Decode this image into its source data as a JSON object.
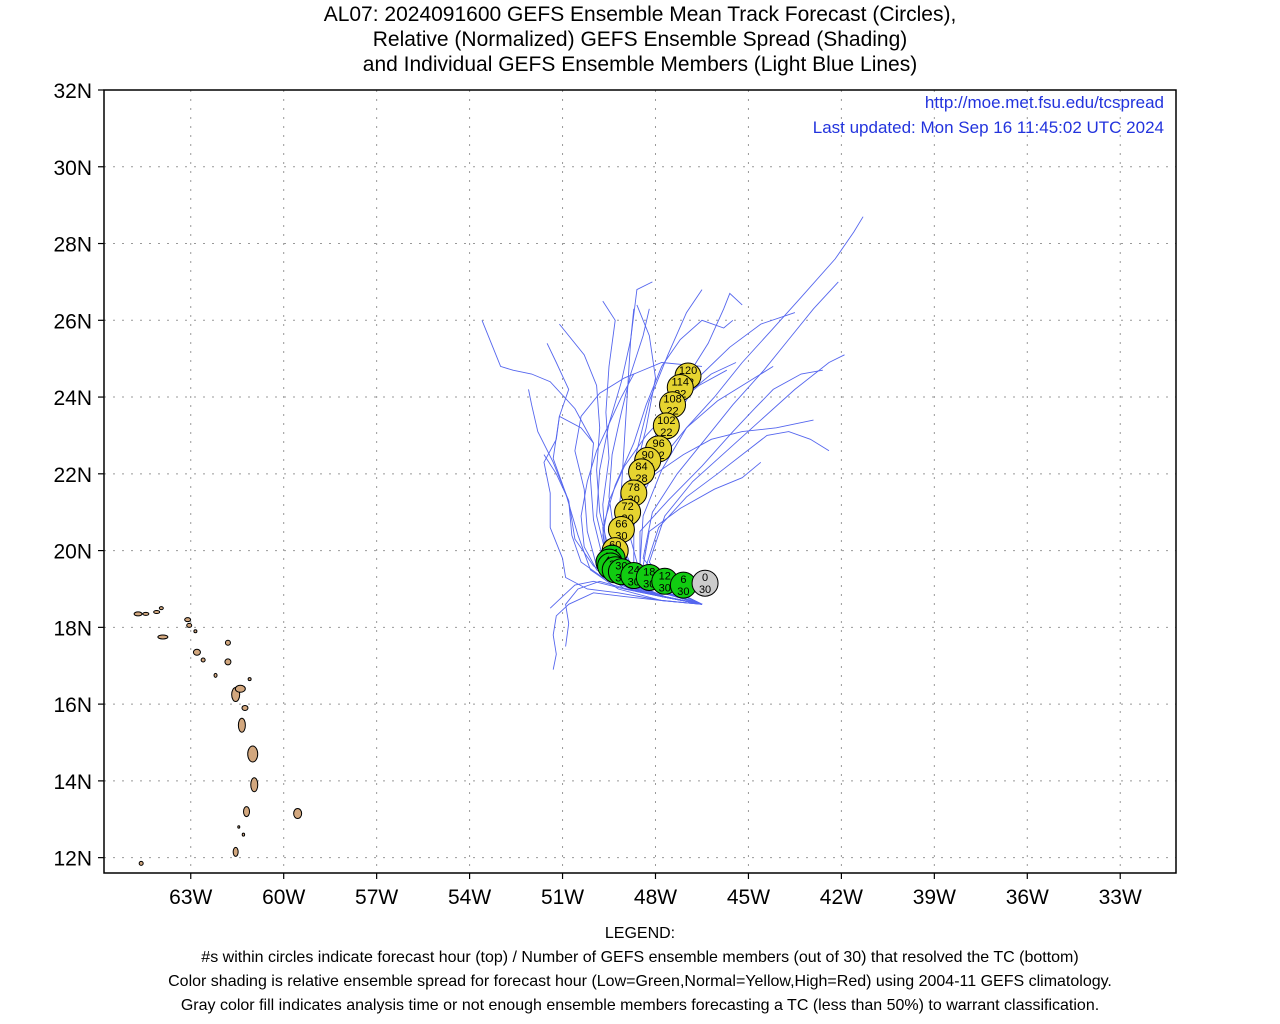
{
  "title": {
    "line1": "AL07: 2024091600 GEFS Ensemble Mean Track Forecast (Circles),",
    "line2": "Relative (Normalized) GEFS Ensemble Spread (Shading)",
    "line3": "and Individual GEFS Ensemble Members (Light Blue Lines)"
  },
  "header": {
    "url": "http://moe.met.fsu.edu/tcspread",
    "updated": "Last updated: Mon Sep 16 11:45:02 UTC 2024"
  },
  "map_extent": {
    "lon": [
      -65.8,
      -31.2
    ],
    "lat": [
      11.6,
      32.0
    ]
  },
  "lat_ticks": [
    {
      "value": 32,
      "label": "32N"
    },
    {
      "value": 30,
      "label": "30N"
    },
    {
      "value": 28,
      "label": "28N"
    },
    {
      "value": 26,
      "label": "26N"
    },
    {
      "value": 24,
      "label": "24N"
    },
    {
      "value": 22,
      "label": "22N"
    },
    {
      "value": 20,
      "label": "20N"
    },
    {
      "value": 18,
      "label": "18N"
    },
    {
      "value": 16,
      "label": "16N"
    },
    {
      "value": 14,
      "label": "14N"
    },
    {
      "value": 12,
      "label": "12N"
    }
  ],
  "lon_ticks": [
    {
      "value": -63,
      "label": "63W"
    },
    {
      "value": -60,
      "label": "60W"
    },
    {
      "value": -57,
      "label": "57W"
    },
    {
      "value": -54,
      "label": "54W"
    },
    {
      "value": -51,
      "label": "51W"
    },
    {
      "value": -48,
      "label": "48W"
    },
    {
      "value": -45,
      "label": "45W"
    },
    {
      "value": -42,
      "label": "42W"
    },
    {
      "value": -39,
      "label": "39W"
    },
    {
      "value": -36,
      "label": "36W"
    },
    {
      "value": -33,
      "label": "33W"
    }
  ],
  "colors": {
    "member_track": "#5566ee",
    "low_spread": "#11cc11",
    "normal_spread": "#e6d430",
    "analysis_gray": "#cccccc",
    "land": "#d2a77e",
    "grid": "#999999",
    "link_text": "#2233dd"
  },
  "mean_track": [
    {
      "hour": "0",
      "members": "30",
      "lon": -46.4,
      "lat": 19.15,
      "spread": "gray"
    },
    {
      "hour": "6",
      "members": "30",
      "lon": -47.1,
      "lat": 19.1,
      "spread": "low"
    },
    {
      "hour": "12",
      "members": "30",
      "lon": -47.7,
      "lat": 19.2,
      "spread": "low"
    },
    {
      "hour": "18",
      "members": "30",
      "lon": -48.2,
      "lat": 19.3,
      "spread": "low"
    },
    {
      "hour": "24",
      "members": "30",
      "lon": -48.7,
      "lat": 19.35,
      "spread": "low"
    },
    {
      "hour": "30",
      "members": "30",
      "lon": -49.1,
      "lat": 19.45,
      "spread": "low"
    },
    {
      "hour": "36",
      "members": "30",
      "lon": -49.3,
      "lat": 19.5,
      "spread": "low"
    },
    {
      "hour": "42",
      "members": "30",
      "lon": -49.45,
      "lat": 19.6,
      "spread": "low"
    },
    {
      "hour": "48",
      "members": "30",
      "lon": -49.5,
      "lat": 19.7,
      "spread": "low"
    },
    {
      "hour": "54",
      "members": "30",
      "lon": -49.4,
      "lat": 19.8,
      "spread": "low"
    },
    {
      "hour": "60",
      "members": "30",
      "lon": -49.3,
      "lat": 20.0,
      "spread": "normal"
    },
    {
      "hour": "66",
      "members": "30",
      "lon": -49.1,
      "lat": 20.55,
      "spread": "normal"
    },
    {
      "hour": "72",
      "members": "30",
      "lon": -48.9,
      "lat": 21.0,
      "spread": "normal"
    },
    {
      "hour": "78",
      "members": "30",
      "lon": -48.7,
      "lat": 21.5,
      "spread": "normal"
    },
    {
      "hour": "84",
      "members": "28",
      "lon": -48.45,
      "lat": 22.05,
      "spread": "normal"
    },
    {
      "hour": "90",
      "members": "24",
      "lon": -48.25,
      "lat": 22.35,
      "spread": "normal"
    },
    {
      "hour": "96",
      "members": "22",
      "lon": -47.9,
      "lat": 22.65,
      "spread": "normal"
    },
    {
      "hour": "102",
      "members": "22",
      "lon": -47.65,
      "lat": 23.25,
      "spread": "normal"
    },
    {
      "hour": "108",
      "members": "22",
      "lon": -47.45,
      "lat": 23.8,
      "spread": "normal"
    },
    {
      "hour": "114",
      "members": "22",
      "lon": -47.2,
      "lat": 24.25,
      "spread": "normal"
    },
    {
      "hour": "120",
      "members": "22",
      "lon": -46.95,
      "lat": 24.55,
      "spread": "normal"
    }
  ],
  "member_tracks": [
    [
      [
        -46.5,
        18.6
      ],
      [
        -47.8,
        18.7
      ],
      [
        -49.2,
        19.0
      ],
      [
        -50.1,
        19.5
      ],
      [
        -50.5,
        20.4
      ],
      [
        -50.9,
        21.5
      ],
      [
        -51.3,
        22.4
      ],
      [
        -51.1,
        23.5
      ],
      [
        -50.8,
        24.2
      ],
      [
        -51.2,
        24.9
      ],
      [
        -51.5,
        25.4
      ]
    ],
    [
      [
        -46.5,
        18.6
      ],
      [
        -47.8,
        18.8
      ],
      [
        -49.0,
        19.0
      ],
      [
        -49.9,
        19.6
      ],
      [
        -50.2,
        20.5
      ],
      [
        -50.3,
        21.6
      ],
      [
        -50.6,
        22.6
      ],
      [
        -50.4,
        23.5
      ],
      [
        -49.8,
        24.1
      ],
      [
        -49.0,
        24.5
      ],
      [
        -47.8,
        24.9
      ],
      [
        -46.5,
        24.8
      ]
    ],
    [
      [
        -46.5,
        18.6
      ],
      [
        -47.8,
        18.8
      ],
      [
        -49.0,
        19.2
      ],
      [
        -49.6,
        20.0
      ],
      [
        -49.7,
        21.2
      ],
      [
        -49.5,
        22.4
      ],
      [
        -49.6,
        23.6
      ],
      [
        -49.5,
        24.8
      ],
      [
        -49.3,
        26.0
      ],
      [
        -49.7,
        26.5
      ]
    ],
    [
      [
        -46.5,
        18.6
      ],
      [
        -47.8,
        18.8
      ],
      [
        -49.0,
        19.3
      ],
      [
        -49.3,
        20.3
      ],
      [
        -49.1,
        21.6
      ],
      [
        -49.0,
        22.9
      ],
      [
        -48.9,
        24.2
      ],
      [
        -48.8,
        25.5
      ],
      [
        -48.6,
        26.8
      ],
      [
        -48.1,
        27.0
      ]
    ],
    [
      [
        -46.5,
        18.6
      ],
      [
        -47.8,
        18.9
      ],
      [
        -48.9,
        19.4
      ],
      [
        -49.0,
        20.6
      ],
      [
        -48.7,
        21.9
      ],
      [
        -48.3,
        23.2
      ],
      [
        -48.0,
        24.5
      ],
      [
        -48.2,
        25.6
      ],
      [
        -48.6,
        26.4
      ]
    ],
    [
      [
        -46.5,
        18.6
      ],
      [
        -47.7,
        18.9
      ],
      [
        -48.7,
        19.5
      ],
      [
        -48.7,
        20.8
      ],
      [
        -48.3,
        22.1
      ],
      [
        -47.7,
        23.4
      ],
      [
        -47.0,
        24.5
      ],
      [
        -46.3,
        25.4
      ],
      [
        -45.8,
        26.3
      ],
      [
        -45.6,
        26.7
      ],
      [
        -45.2,
        26.4
      ]
    ],
    [
      [
        -46.5,
        18.6
      ],
      [
        -47.6,
        19.0
      ],
      [
        -48.5,
        19.6
      ],
      [
        -48.4,
        20.9
      ],
      [
        -47.8,
        22.1
      ],
      [
        -47.0,
        23.2
      ],
      [
        -46.1,
        24.0
      ],
      [
        -45.2,
        24.9
      ],
      [
        -44.3,
        25.7
      ],
      [
        -43.3,
        26.6
      ],
      [
        -42.2,
        27.6
      ],
      [
        -41.6,
        28.3
      ],
      [
        -41.3,
        28.7
      ]
    ],
    [
      [
        -46.5,
        18.6
      ],
      [
        -47.6,
        19.0
      ],
      [
        -48.4,
        19.8
      ],
      [
        -48.1,
        21.0
      ],
      [
        -47.3,
        22.0
      ],
      [
        -46.4,
        22.9
      ],
      [
        -45.5,
        23.8
      ],
      [
        -44.5,
        24.7
      ],
      [
        -43.7,
        25.5
      ],
      [
        -42.9,
        26.3
      ],
      [
        -42.1,
        27.0
      ]
    ],
    [
      [
        -46.5,
        18.6
      ],
      [
        -47.5,
        19.0
      ],
      [
        -48.2,
        19.7
      ],
      [
        -47.7,
        20.9
      ],
      [
        -46.8,
        21.8
      ],
      [
        -45.7,
        22.6
      ],
      [
        -44.6,
        23.4
      ],
      [
        -43.5,
        24.2
      ],
      [
        -42.4,
        24.9
      ],
      [
        -41.9,
        25.1
      ]
    ],
    [
      [
        -46.5,
        18.6
      ],
      [
        -47.5,
        19.0
      ],
      [
        -48.3,
        19.6
      ],
      [
        -47.9,
        20.6
      ],
      [
        -47.0,
        21.4
      ],
      [
        -46.0,
        22.0
      ],
      [
        -45.2,
        22.5
      ],
      [
        -44.4,
        23.0
      ],
      [
        -43.7,
        23.1
      ],
      [
        -43.0,
        22.9
      ],
      [
        -42.4,
        22.6
      ]
    ],
    [
      [
        -46.5,
        18.6
      ],
      [
        -47.5,
        19.0
      ],
      [
        -48.4,
        19.6
      ],
      [
        -48.2,
        20.5
      ],
      [
        -47.2,
        21.1
      ],
      [
        -46.1,
        21.6
      ],
      [
        -45.2,
        21.9
      ],
      [
        -44.6,
        22.3
      ]
    ],
    [
      [
        -46.5,
        18.6
      ],
      [
        -47.5,
        19.0
      ],
      [
        -48.5,
        19.5
      ],
      [
        -48.5,
        20.5
      ],
      [
        -47.6,
        21.3
      ],
      [
        -46.5,
        22.2
      ],
      [
        -45.5,
        23.1
      ],
      [
        -44.8,
        23.7
      ],
      [
        -44.2,
        24.2
      ],
      [
        -43.3,
        24.6
      ],
      [
        -42.6,
        24.7
      ]
    ],
    [
      [
        -46.5,
        18.6
      ],
      [
        -47.6,
        19.0
      ],
      [
        -48.6,
        19.4
      ],
      [
        -49.2,
        20.1
      ],
      [
        -49.0,
        21.3
      ],
      [
        -48.6,
        22.6
      ],
      [
        -48.2,
        23.9
      ],
      [
        -47.6,
        25.1
      ],
      [
        -47.0,
        26.2
      ],
      [
        -46.5,
        26.8
      ]
    ],
    [
      [
        -46.5,
        18.6
      ],
      [
        -47.7,
        18.9
      ],
      [
        -48.8,
        19.3
      ],
      [
        -49.5,
        20.0
      ],
      [
        -49.8,
        21.0
      ],
      [
        -49.9,
        22.1
      ],
      [
        -49.8,
        23.2
      ],
      [
        -49.9,
        24.3
      ],
      [
        -50.3,
        25.1
      ],
      [
        -51.1,
        25.9
      ]
    ],
    [
      [
        -46.5,
        18.6
      ],
      [
        -47.8,
        18.8
      ],
      [
        -49.0,
        19.2
      ],
      [
        -49.7,
        19.8
      ],
      [
        -50.0,
        20.8
      ],
      [
        -50.1,
        21.9
      ],
      [
        -50.0,
        22.8
      ],
      [
        -50.6,
        23.7
      ],
      [
        -51.4,
        24.4
      ],
      [
        -52.0,
        24.6
      ],
      [
        -52.6,
        24.7
      ],
      [
        -53.0,
        24.8
      ],
      [
        -53.3,
        25.4
      ],
      [
        -53.6,
        26.0
      ]
    ],
    [
      [
        -46.5,
        18.6
      ],
      [
        -47.8,
        18.8
      ],
      [
        -49.0,
        19.0
      ],
      [
        -50.0,
        19.2
      ],
      [
        -50.6,
        19.1
      ],
      [
        -51.0,
        18.8
      ],
      [
        -51.4,
        18.5
      ]
    ],
    [
      [
        -46.5,
        18.6
      ],
      [
        -47.8,
        18.7
      ],
      [
        -49.0,
        18.8
      ],
      [
        -50.0,
        18.9
      ],
      [
        -50.8,
        18.6
      ],
      [
        -51.2,
        18.3
      ],
      [
        -51.3,
        17.8
      ],
      [
        -51.2,
        17.3
      ],
      [
        -51.3,
        16.9
      ]
    ],
    [
      [
        -46.5,
        18.6
      ],
      [
        -47.8,
        18.7
      ],
      [
        -49.2,
        18.9
      ],
      [
        -50.2,
        19.0
      ],
      [
        -50.9,
        19.3
      ],
      [
        -51.0,
        19.8
      ],
      [
        -51.4,
        20.6
      ],
      [
        -51.4,
        21.5
      ],
      [
        -51.6,
        22.3
      ],
      [
        -51.2,
        22.9
      ],
      [
        -51.1,
        23.5
      ],
      [
        -50.4,
        23.2
      ],
      [
        -50.0,
        22.8
      ]
    ],
    [
      [
        -46.5,
        18.6
      ],
      [
        -47.8,
        18.8
      ],
      [
        -49.1,
        19.1
      ],
      [
        -50.0,
        19.6
      ],
      [
        -50.6,
        20.3
      ],
      [
        -50.8,
        21.3
      ],
      [
        -51.3,
        22.3
      ],
      [
        -51.8,
        23.1
      ],
      [
        -52.0,
        23.8
      ],
      [
        -52.1,
        24.2
      ]
    ],
    [
      [
        -46.5,
        18.6
      ],
      [
        -47.7,
        18.8
      ],
      [
        -48.9,
        19.1
      ],
      [
        -49.6,
        19.6
      ],
      [
        -49.7,
        20.6
      ],
      [
        -49.3,
        21.7
      ],
      [
        -48.7,
        22.8
      ],
      [
        -48.3,
        23.8
      ],
      [
        -47.8,
        24.8
      ],
      [
        -47.2,
        25.5
      ],
      [
        -46.5,
        26.0
      ],
      [
        -45.8,
        25.8
      ],
      [
        -45.5,
        26.0
      ]
    ],
    [
      [
        -46.5,
        18.6
      ],
      [
        -47.6,
        18.9
      ],
      [
        -48.6,
        19.3
      ],
      [
        -49.1,
        20.0
      ],
      [
        -49.0,
        21.0
      ],
      [
        -48.6,
        22.0
      ],
      [
        -48.0,
        23.0
      ],
      [
        -47.3,
        23.9
      ],
      [
        -46.5,
        24.6
      ],
      [
        -45.6,
        25.3
      ],
      [
        -44.6,
        25.9
      ],
      [
        -43.5,
        26.2
      ]
    ],
    [
      [
        -46.5,
        18.6
      ],
      [
        -47.6,
        18.9
      ],
      [
        -48.7,
        19.4
      ],
      [
        -49.3,
        20.3
      ],
      [
        -49.5,
        21.4
      ],
      [
        -49.4,
        22.5
      ],
      [
        -49.1,
        23.6
      ],
      [
        -48.8,
        24.6
      ],
      [
        -48.4,
        25.6
      ],
      [
        -48.2,
        26.3
      ]
    ],
    [
      [
        -46.5,
        18.6
      ],
      [
        -47.7,
        18.8
      ],
      [
        -48.8,
        19.1
      ],
      [
        -49.4,
        19.6
      ],
      [
        -49.3,
        20.5
      ],
      [
        -48.8,
        21.3
      ],
      [
        -48.0,
        22.0
      ],
      [
        -47.1,
        22.5
      ],
      [
        -46.2,
        22.9
      ],
      [
        -45.2,
        23.1
      ],
      [
        -44.1,
        23.2
      ],
      [
        -42.9,
        23.4
      ]
    ],
    [
      [
        -46.5,
        18.6
      ],
      [
        -47.7,
        18.8
      ],
      [
        -48.8,
        19.0
      ],
      [
        -49.7,
        19.3
      ],
      [
        -50.4,
        19.7
      ],
      [
        -50.7,
        20.4
      ],
      [
        -50.8,
        21.3
      ],
      [
        -51.2,
        22.0
      ],
      [
        -51.6,
        22.5
      ]
    ],
    [
      [
        -46.5,
        18.6
      ],
      [
        -47.8,
        18.8
      ],
      [
        -48.9,
        19.0
      ],
      [
        -49.8,
        19.2
      ],
      [
        -50.5,
        19.0
      ],
      [
        -50.9,
        18.6
      ],
      [
        -50.8,
        18.1
      ],
      [
        -50.9,
        17.5
      ]
    ],
    [
      [
        -46.5,
        18.6
      ],
      [
        -47.7,
        18.9
      ],
      [
        -48.6,
        19.3
      ],
      [
        -49.0,
        20.0
      ],
      [
        -48.9,
        20.9
      ],
      [
        -48.4,
        21.8
      ],
      [
        -47.8,
        22.7
      ],
      [
        -47.3,
        23.5
      ],
      [
        -46.8,
        24.2
      ],
      [
        -46.2,
        24.6
      ],
      [
        -45.4,
        24.9
      ]
    ],
    [
      [
        -46.5,
        18.6
      ],
      [
        -47.6,
        18.9
      ],
      [
        -48.5,
        19.4
      ],
      [
        -48.8,
        20.3
      ],
      [
        -48.5,
        21.3
      ],
      [
        -47.9,
        22.3
      ],
      [
        -47.0,
        23.2
      ],
      [
        -46.0,
        23.9
      ],
      [
        -45.0,
        24.4
      ],
      [
        -44.2,
        24.8
      ]
    ],
    [
      [
        -46.5,
        18.6
      ],
      [
        -47.7,
        18.8
      ],
      [
        -48.9,
        19.2
      ],
      [
        -49.6,
        19.9
      ],
      [
        -49.9,
        20.9
      ],
      [
        -49.8,
        22.1
      ],
      [
        -49.5,
        23.3
      ],
      [
        -49.1,
        24.4
      ],
      [
        -48.8,
        25.5
      ],
      [
        -48.7,
        26.3
      ]
    ],
    [
      [
        -46.5,
        18.6
      ],
      [
        -47.7,
        18.9
      ],
      [
        -48.8,
        19.2
      ],
      [
        -49.5,
        19.7
      ],
      [
        -49.7,
        20.4
      ],
      [
        -49.5,
        21.3
      ],
      [
        -49.0,
        22.2
      ],
      [
        -48.3,
        23.0
      ],
      [
        -47.5,
        23.7
      ],
      [
        -46.6,
        24.3
      ],
      [
        -45.7,
        24.7
      ]
    ],
    [
      [
        -46.5,
        18.6
      ],
      [
        -47.8,
        18.8
      ],
      [
        -49.0,
        19.1
      ],
      [
        -49.9,
        19.5
      ],
      [
        -50.3,
        20.1
      ],
      [
        -50.4,
        20.9
      ],
      [
        -50.2,
        21.8
      ],
      [
        -49.9,
        22.6
      ],
      [
        -49.5,
        23.3
      ],
      [
        -49.1,
        24.0
      ],
      [
        -48.7,
        24.6
      ]
    ]
  ],
  "legend": {
    "heading": "LEGEND:",
    "line1": "#s within circles indicate forecast hour (top) / Number of GEFS ensemble members (out of 30) that resolved the TC (bottom)",
    "line2": "Color shading is relative ensemble spread for forecast hour (Low=Green,Normal=Yellow,High=Red) using 2004-11 GEFS climatology.",
    "line3": "Gray color fill indicates analysis time or not enough ensemble members forecasting a TC (less than 50%) to warrant classification."
  }
}
